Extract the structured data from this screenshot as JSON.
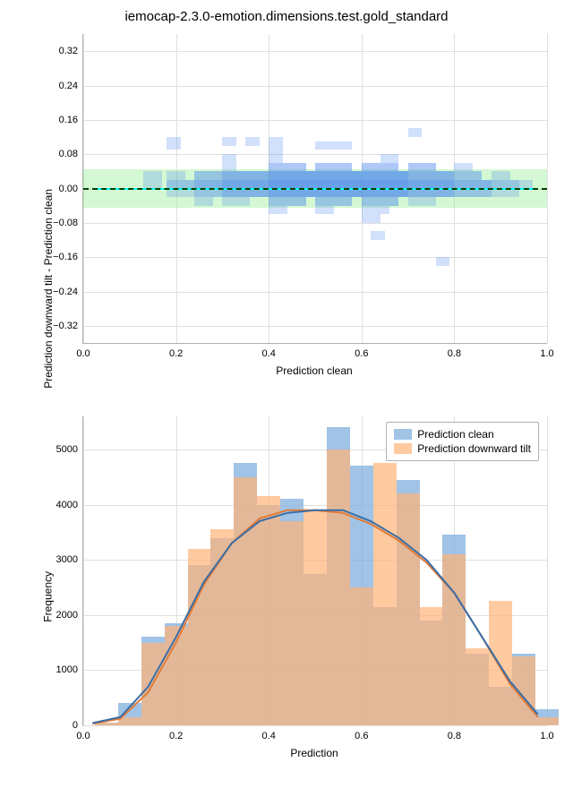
{
  "title": "iemocap-2.3.0-emotion.dimensions.test.gold_standard",
  "colors": {
    "background": "#ffffff",
    "grid": "#e0e0e0",
    "spine": "#b0b0b0",
    "scatter_fill": "rgba(70,130,240,0.25)",
    "green_band": "rgba(144,238,144,0.4)",
    "cyan_line": "#00ffff",
    "dash_line": "#004400",
    "hist_clean": "rgba(120,170,220,0.7)",
    "hist_tilt": "rgba(255,180,120,0.7)",
    "kde_clean": "#3a6ea5",
    "kde_tilt": "#e07b39",
    "text": "#000000"
  },
  "scatter": {
    "xlabel": "Prediction clean",
    "ylabel": "Prediction downward tilt - Prediction clean",
    "xlim": [
      0.0,
      1.0
    ],
    "ylim": [
      -0.36,
      0.36
    ],
    "xticks": [
      0.0,
      0.2,
      0.4,
      0.6,
      0.8,
      1.0
    ],
    "xtick_labels": [
      "0.0",
      "0.2",
      "0.4",
      "0.6",
      "0.8",
      "1.0"
    ],
    "yticks": [
      -0.32,
      -0.24,
      -0.16,
      -0.08,
      0.0,
      0.08,
      0.16,
      0.24,
      0.32
    ],
    "ytick_labels": [
      "−0.32",
      "−0.24",
      "−0.16",
      "−0.08",
      "0.00",
      "0.08",
      "0.16",
      "0.24",
      "0.32"
    ],
    "green_band_y": [
      -0.045,
      0.045
    ],
    "cyan_line_x": [
      0.02,
      0.97
    ],
    "dash_y": 0.0,
    "cells": [
      [
        0.13,
        0.0,
        0.04,
        0.02,
        1
      ],
      [
        0.13,
        0.02,
        0.04,
        0.02,
        1
      ],
      [
        0.18,
        0.09,
        0.03,
        0.03,
        1
      ],
      [
        0.18,
        0.0,
        0.06,
        0.02,
        2
      ],
      [
        0.18,
        0.02,
        0.04,
        0.02,
        1
      ],
      [
        0.18,
        -0.02,
        0.06,
        0.02,
        1
      ],
      [
        0.24,
        0.0,
        0.06,
        0.02,
        3
      ],
      [
        0.24,
        0.02,
        0.06,
        0.02,
        2
      ],
      [
        0.24,
        -0.02,
        0.06,
        0.02,
        2
      ],
      [
        0.24,
        -0.04,
        0.04,
        0.02,
        1
      ],
      [
        0.3,
        0.04,
        0.03,
        0.02,
        1
      ],
      [
        0.3,
        0.06,
        0.03,
        0.02,
        1
      ],
      [
        0.3,
        0.1,
        0.03,
        0.02,
        1
      ],
      [
        0.3,
        0.0,
        0.1,
        0.02,
        4
      ],
      [
        0.3,
        0.02,
        0.1,
        0.02,
        3
      ],
      [
        0.3,
        -0.02,
        0.1,
        0.02,
        3
      ],
      [
        0.3,
        -0.04,
        0.06,
        0.02,
        1
      ],
      [
        0.35,
        0.1,
        0.03,
        0.02,
        1
      ],
      [
        0.4,
        0.06,
        0.03,
        0.04,
        1
      ],
      [
        0.4,
        0.1,
        0.03,
        0.02,
        1
      ],
      [
        0.4,
        0.0,
        0.1,
        0.02,
        5
      ],
      [
        0.4,
        0.02,
        0.1,
        0.02,
        4
      ],
      [
        0.4,
        -0.02,
        0.1,
        0.02,
        4
      ],
      [
        0.4,
        0.04,
        0.08,
        0.02,
        2
      ],
      [
        0.4,
        -0.04,
        0.08,
        0.02,
        2
      ],
      [
        0.4,
        -0.06,
        0.04,
        0.02,
        1
      ],
      [
        0.5,
        0.09,
        0.04,
        0.02,
        1
      ],
      [
        0.54,
        0.09,
        0.04,
        0.02,
        1
      ],
      [
        0.5,
        0.0,
        0.1,
        0.02,
        5
      ],
      [
        0.5,
        0.02,
        0.1,
        0.02,
        4
      ],
      [
        0.5,
        -0.02,
        0.1,
        0.02,
        4
      ],
      [
        0.5,
        0.04,
        0.08,
        0.02,
        2
      ],
      [
        0.5,
        -0.04,
        0.08,
        0.02,
        2
      ],
      [
        0.5,
        -0.06,
        0.04,
        0.02,
        1
      ],
      [
        0.6,
        0.0,
        0.1,
        0.02,
        5
      ],
      [
        0.6,
        0.02,
        0.1,
        0.02,
        4
      ],
      [
        0.6,
        -0.02,
        0.1,
        0.02,
        4
      ],
      [
        0.6,
        0.04,
        0.08,
        0.02,
        2
      ],
      [
        0.6,
        -0.04,
        0.08,
        0.02,
        2
      ],
      [
        0.6,
        -0.06,
        0.06,
        0.02,
        1
      ],
      [
        0.6,
        -0.08,
        0.04,
        0.02,
        1
      ],
      [
        0.62,
        -0.12,
        0.03,
        0.02,
        1
      ],
      [
        0.64,
        0.06,
        0.04,
        0.02,
        1
      ],
      [
        0.7,
        0.0,
        0.1,
        0.02,
        4
      ],
      [
        0.7,
        0.02,
        0.1,
        0.02,
        3
      ],
      [
        0.7,
        -0.02,
        0.1,
        0.02,
        3
      ],
      [
        0.7,
        0.04,
        0.06,
        0.02,
        2
      ],
      [
        0.7,
        -0.04,
        0.06,
        0.02,
        1
      ],
      [
        0.7,
        0.12,
        0.03,
        0.02,
        1
      ],
      [
        0.76,
        -0.18,
        0.03,
        0.02,
        1
      ],
      [
        0.8,
        0.0,
        0.08,
        0.02,
        3
      ],
      [
        0.8,
        0.02,
        0.06,
        0.02,
        2
      ],
      [
        0.8,
        -0.02,
        0.08,
        0.02,
        2
      ],
      [
        0.8,
        0.04,
        0.04,
        0.02,
        1
      ],
      [
        0.88,
        0.0,
        0.06,
        0.02,
        2
      ],
      [
        0.88,
        -0.02,
        0.06,
        0.02,
        1
      ],
      [
        0.88,
        0.02,
        0.04,
        0.02,
        1
      ],
      [
        0.94,
        0.0,
        0.03,
        0.02,
        1
      ]
    ]
  },
  "hist": {
    "xlabel": "Prediction",
    "ylabel": "Frequency",
    "xlim": [
      0.0,
      1.0
    ],
    "ylim": [
      0,
      5600
    ],
    "xticks": [
      0.0,
      0.2,
      0.4,
      0.6,
      0.8,
      1.0
    ],
    "xtick_labels": [
      "0.0",
      "0.2",
      "0.4",
      "0.6",
      "0.8",
      "1.0"
    ],
    "yticks": [
      0,
      1000,
      2000,
      3000,
      4000,
      5000
    ],
    "ytick_labels": [
      "0",
      "1000",
      "2000",
      "3000",
      "4000",
      "5000"
    ],
    "bin_edges": [
      0.05,
      0.1,
      0.15,
      0.2,
      0.25,
      0.3,
      0.35,
      0.4,
      0.45,
      0.5,
      0.55,
      0.6,
      0.65,
      0.7,
      0.75,
      0.8,
      0.85,
      0.9,
      0.95,
      1.0
    ],
    "clean": [
      50,
      400,
      1600,
      1850,
      2900,
      3400,
      4750,
      4000,
      4100,
      2750,
      5400,
      4700,
      2150,
      4450,
      1900,
      3450,
      1300,
      700,
      1300,
      300
    ],
    "tilt": [
      50,
      150,
      1500,
      1800,
      3200,
      3550,
      4500,
      4150,
      3700,
      3900,
      5000,
      2500,
      4750,
      4200,
      2150,
      3100,
      1400,
      2250,
      1250,
      150
    ],
    "kde_clean_pts": [
      [
        0.02,
        40
      ],
      [
        0.08,
        150
      ],
      [
        0.14,
        700
      ],
      [
        0.2,
        1600
      ],
      [
        0.26,
        2600
      ],
      [
        0.32,
        3300
      ],
      [
        0.38,
        3700
      ],
      [
        0.44,
        3850
      ],
      [
        0.5,
        3900
      ],
      [
        0.56,
        3900
      ],
      [
        0.62,
        3700
      ],
      [
        0.68,
        3400
      ],
      [
        0.74,
        3000
      ],
      [
        0.8,
        2400
      ],
      [
        0.86,
        1600
      ],
      [
        0.92,
        800
      ],
      [
        0.98,
        200
      ]
    ],
    "kde_tilt_pts": [
      [
        0.02,
        30
      ],
      [
        0.08,
        120
      ],
      [
        0.14,
        600
      ],
      [
        0.2,
        1500
      ],
      [
        0.26,
        2550
      ],
      [
        0.32,
        3300
      ],
      [
        0.38,
        3750
      ],
      [
        0.44,
        3900
      ],
      [
        0.5,
        3900
      ],
      [
        0.56,
        3850
      ],
      [
        0.62,
        3650
      ],
      [
        0.68,
        3350
      ],
      [
        0.74,
        2950
      ],
      [
        0.8,
        2400
      ],
      [
        0.86,
        1600
      ],
      [
        0.92,
        750
      ],
      [
        0.98,
        150
      ]
    ]
  },
  "legend": {
    "clean": "Prediction clean",
    "tilt": "Prediction downward tilt"
  }
}
